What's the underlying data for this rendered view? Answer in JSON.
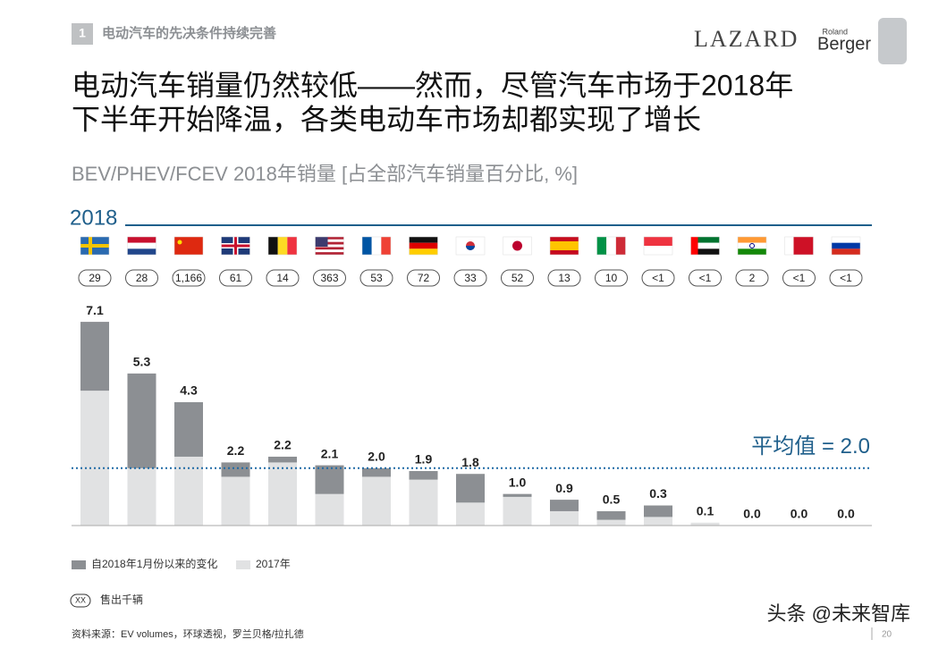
{
  "header": {
    "section_number": "1",
    "section_title": "电动汽车的先决条件持续完善",
    "logo_lazard": "LAZARD",
    "logo_roland": "Roland",
    "logo_berger": "Berger"
  },
  "title_lines": [
    "电动汽车销量仍然较低——然而，尽管汽车市场于2018年",
    "下半年开始降温，各类电动车市场却都实现了增长"
  ],
  "chart_data": {
    "type": "stacked-bar",
    "subtitle": "BEV/PHEV/FCEV 2018年销量 [占全部汽车销量百分比, %]",
    "year_label": "2018",
    "unit_sales_labels": [
      "29",
      "28",
      "1,166",
      "61",
      "14",
      "363",
      "53",
      "72",
      "33",
      "52",
      "13",
      "10",
      "<1",
      "<1",
      "2",
      "<1",
      "<1"
    ],
    "series": [
      {
        "name": "2017年",
        "color": "#e1e2e3",
        "values": [
          4.7,
          2.0,
          2.4,
          1.7,
          2.4,
          1.1,
          1.7,
          1.6,
          0.8,
          1.1,
          0.5,
          0.2,
          0.7,
          0.1,
          0,
          0,
          0
        ]
      },
      {
        "name": "自2018年1月份以来的变化",
        "color": "#8c8f93",
        "values": [
          2.4,
          3.3,
          1.9,
          0.5,
          -0.2,
          1.0,
          0.3,
          0.3,
          1.0,
          -0.1,
          0.4,
          0.3,
          -0.4,
          0.0,
          0,
          0,
          0
        ]
      }
    ],
    "totals": {
      "values": [
        7.1,
        5.3,
        4.3,
        2.2,
        2.2,
        2.1,
        2.0,
        1.9,
        1.8,
        1.0,
        0.9,
        0.5,
        0.3,
        0.1,
        0.0,
        0.0,
        0.0
      ],
      "value_labels": [
        "7.1",
        "5.3",
        "4.3",
        "2.2",
        "2.2",
        "2.1",
        "2.0",
        "1.9",
        "1.8",
        "1.0",
        "0.9",
        "0.5",
        "0.3",
        "0.1",
        "0.0",
        "0.0",
        "0.0"
      ]
    },
    "average": {
      "value": 2.0,
      "label": "平均值 = 2.0"
    },
    "unit_note": {
      "marker": "XX",
      "text": "售出千辆"
    }
  },
  "footer": {
    "source": "资料来源：EV volumes，环球透视，罗兰贝格/拉扎德",
    "page": "20",
    "watermark": "头条 @未来智库"
  }
}
